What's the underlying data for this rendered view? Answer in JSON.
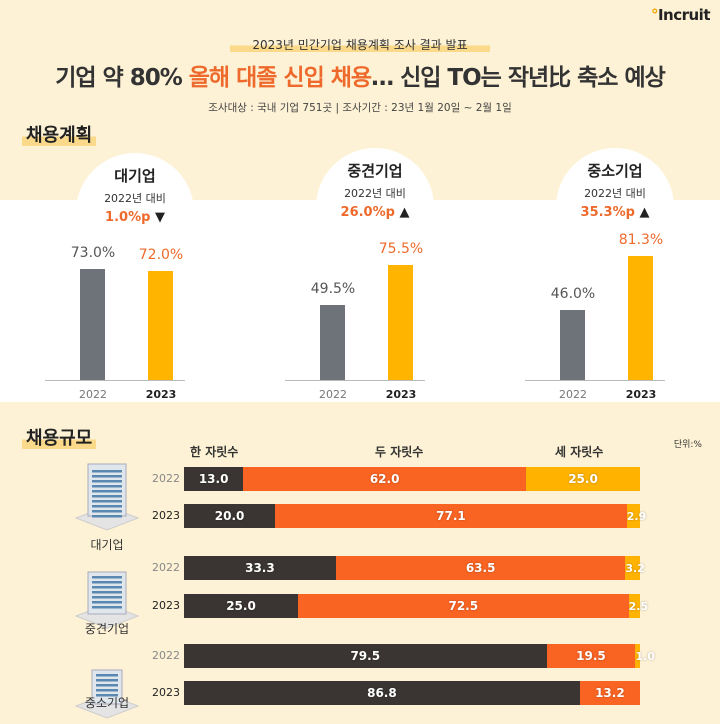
{
  "logo": "Incruit",
  "supertitle": "2023년 민간기업 채용계획 조사 결과 발표",
  "headline": {
    "part1": "기업 약 80% ",
    "part2": "올해 대졸 신입 채용",
    "part3": "… 신입 TO는 작년比 축소 예상"
  },
  "survey": "조사대상 : 국내 기업 751곳  |  조사기간 : 23년 1월 20일 ~ 2월 1일",
  "colors": {
    "y2022": "#6d7378",
    "y2023": "#ffb400",
    "one_digit": "#3a3532",
    "two_digit": "#fa6423",
    "three_digit": "#ffb300",
    "accent": "#ee6a2c"
  },
  "chart_data": [
    {
      "type": "bar",
      "title": "채용계획",
      "groups": [
        {
          "name": "대기업",
          "compare": "2022년 대비",
          "delta": "1.0%p",
          "direction": "▼",
          "categories": [
            "2022",
            "2023"
          ],
          "values": [
            73.0,
            72.0
          ],
          "labels": [
            "73.0%",
            "72.0%"
          ]
        },
        {
          "name": "중견기업",
          "compare": "2022년 대비",
          "delta": "26.0%p",
          "direction": "▲",
          "categories": [
            "2022",
            "2023"
          ],
          "values": [
            49.5,
            75.5
          ],
          "labels": [
            "49.5%",
            "75.5%"
          ]
        },
        {
          "name": "중소기업",
          "compare": "2022년 대비",
          "delta": "35.3%p",
          "direction": "▲",
          "categories": [
            "2022",
            "2023"
          ],
          "values": [
            46.0,
            81.3
          ],
          "labels": [
            "46.0%",
            "81.3%"
          ]
        }
      ]
    },
    {
      "type": "bar",
      "stacked": true,
      "orientation": "horizontal",
      "title": "채용규모",
      "unit": "단위:%",
      "series_names": [
        "한 자릿수",
        "두 자릿수",
        "세 자릿수"
      ],
      "groups": [
        {
          "name": "대기업",
          "rows": [
            {
              "year": "2022",
              "values": [
                13.0,
                62.0,
                25.0
              ],
              "labels": [
                "13.0",
                "62.0",
                "25.0"
              ]
            },
            {
              "year": "2023",
              "values": [
                20.0,
                77.1,
                2.9
              ],
              "labels": [
                "20.0",
                "77.1",
                "2.9"
              ]
            }
          ]
        },
        {
          "name": "중견기업",
          "rows": [
            {
              "year": "2022",
              "values": [
                33.3,
                63.5,
                3.2
              ],
              "labels": [
                "33.3",
                "63.5",
                "3.2"
              ]
            },
            {
              "year": "2023",
              "values": [
                25.0,
                72.5,
                2.5
              ],
              "labels": [
                "25.0",
                "72.5",
                "2.5"
              ]
            }
          ]
        },
        {
          "name": "중소기업",
          "rows": [
            {
              "year": "2022",
              "values": [
                79.5,
                19.5,
                1.0
              ],
              "labels": [
                "79.5",
                "19.5",
                "1.0"
              ]
            },
            {
              "year": "2023",
              "values": [
                86.8,
                13.2,
                0
              ],
              "labels": [
                "86.8",
                "13.2",
                ""
              ]
            }
          ]
        }
      ]
    }
  ]
}
